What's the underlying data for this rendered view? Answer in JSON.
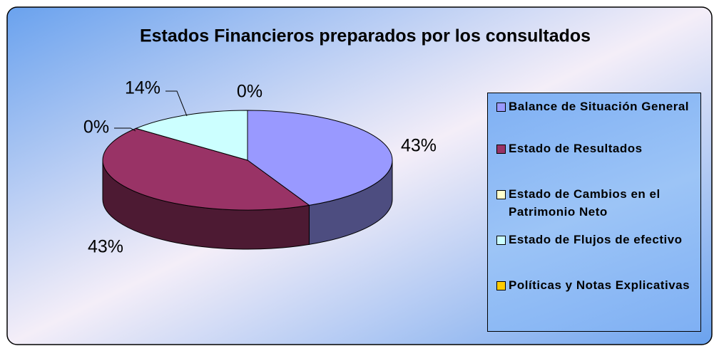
{
  "chart_data": {
    "type": "pie",
    "title": "Estados Financieros preparados por los consultados",
    "categories": [
      "Balance de Situación General",
      "Estado de Resultados",
      "Estado de Cambios en el Patrimonio Neto",
      "Estado de Flujos de efectivo",
      "Políticas y Notas Explicativas"
    ],
    "values": [
      43,
      43,
      0,
      14,
      0
    ],
    "value_labels": [
      "43%",
      "43%",
      "0%",
      "14%",
      "0%"
    ],
    "colors": [
      "#9999ff",
      "#993366",
      "#ffffcc",
      "#ccffff",
      "#ffcc00"
    ]
  }
}
